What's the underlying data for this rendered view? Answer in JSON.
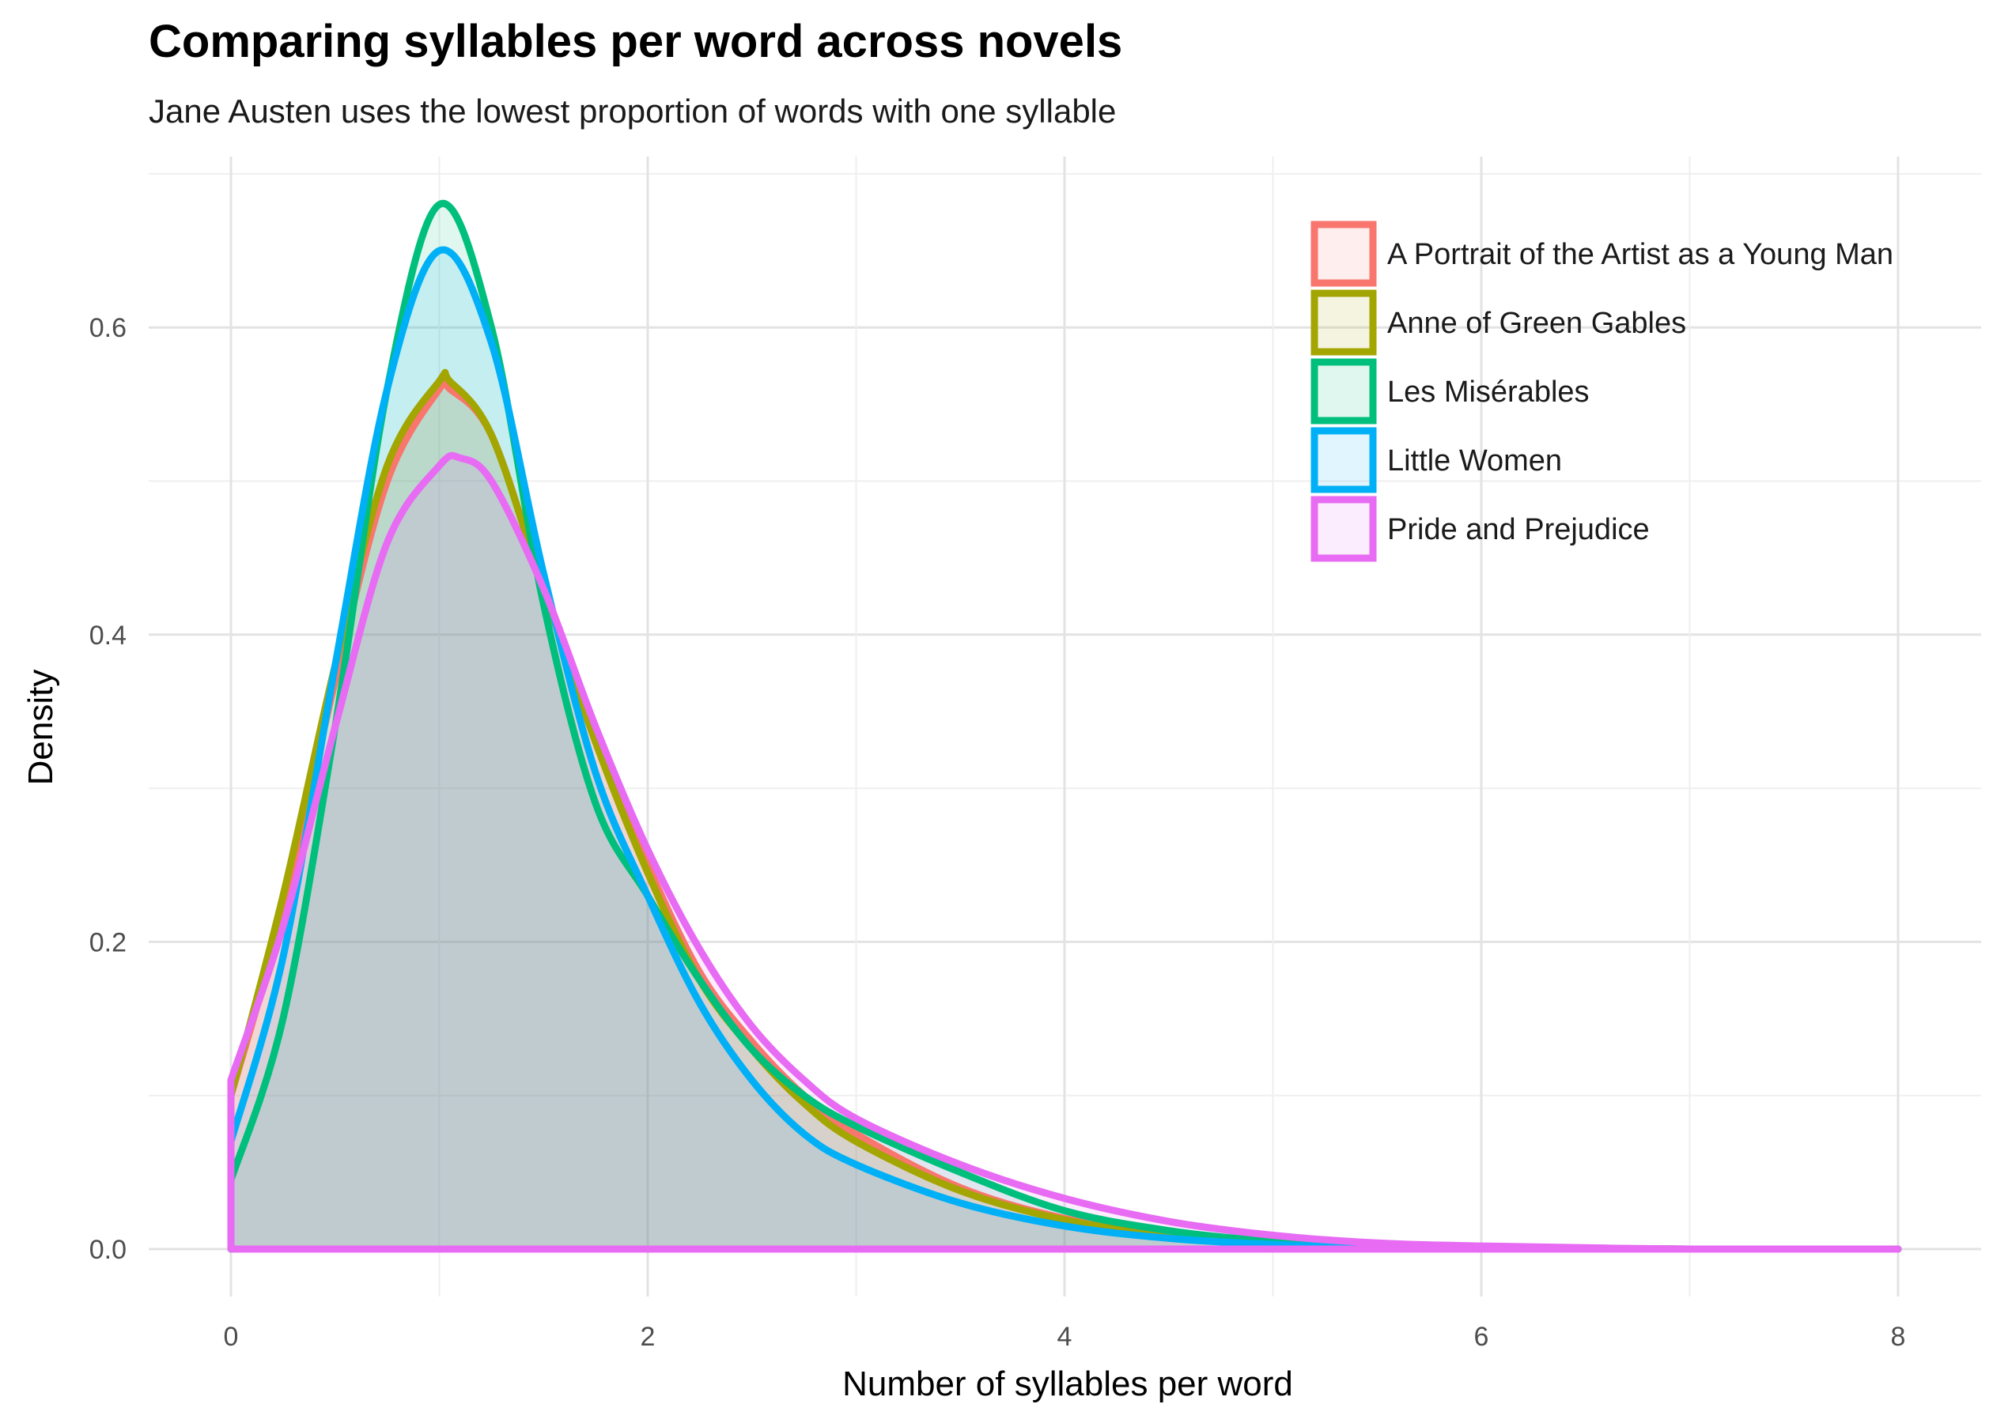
{
  "chart_data": {
    "type": "area",
    "title": "Comparing syllables per word across novels",
    "subtitle": "Jane Austen uses the lowest proportion of words with one syllable",
    "xlabel": "Number of syllables per word",
    "ylabel": "Density",
    "xlim": [
      0,
      8
    ],
    "ylim": [
      0,
      0.7
    ],
    "x_ticks": [
      0,
      2,
      4,
      6,
      8
    ],
    "y_ticks": [
      0.0,
      0.2,
      0.4,
      0.6
    ],
    "x_tick_labels": [
      "0",
      "2",
      "4",
      "6",
      "8"
    ],
    "y_tick_labels": [
      "0.0",
      "0.2",
      "0.4",
      "0.6"
    ],
    "grid": true,
    "legend_position": "top-right",
    "series": [
      {
        "name": "A Portrait of the Artist as a Young Man",
        "color": "#F8766D",
        "x": [
          0,
          0.25,
          0.5,
          0.75,
          1.0,
          1.05,
          1.25,
          1.5,
          1.75,
          2.0,
          2.25,
          2.5,
          2.75,
          3.0,
          3.5,
          4.0,
          4.5,
          5.0,
          5.5,
          6.0,
          7.0,
          8.0
        ],
        "y": [
          0.1,
          0.22,
          0.37,
          0.5,
          0.56,
          0.56,
          0.53,
          0.43,
          0.33,
          0.25,
          0.18,
          0.135,
          0.1,
          0.075,
          0.04,
          0.02,
          0.01,
          0.005,
          0.002,
          0.001,
          0.0,
          0.0
        ]
      },
      {
        "name": "Anne of Green Gables",
        "color": "#A3A500",
        "x": [
          0,
          0.25,
          0.5,
          0.75,
          1.0,
          1.05,
          1.25,
          1.5,
          1.75,
          2.0,
          2.25,
          2.5,
          2.75,
          3.0,
          3.5,
          4.0,
          4.5,
          5.0,
          5.5,
          6.0,
          7.0,
          8.0
        ],
        "y": [
          0.1,
          0.23,
          0.38,
          0.51,
          0.565,
          0.565,
          0.53,
          0.43,
          0.33,
          0.245,
          0.175,
          0.13,
          0.095,
          0.07,
          0.038,
          0.019,
          0.009,
          0.004,
          0.002,
          0.001,
          0.0,
          0.0
        ]
      },
      {
        "name": "Les Misérables",
        "color": "#00BF7D",
        "x": [
          0,
          0.25,
          0.5,
          0.75,
          1.0,
          1.25,
          1.5,
          1.75,
          2.0,
          2.25,
          2.5,
          2.75,
          3.0,
          3.5,
          4.0,
          4.5,
          5.0,
          5.5,
          6.0,
          7.0,
          8.0
        ],
        "y": [
          0.045,
          0.15,
          0.34,
          0.56,
          0.68,
          0.6,
          0.42,
          0.29,
          0.23,
          0.175,
          0.13,
          0.1,
          0.08,
          0.05,
          0.025,
          0.012,
          0.005,
          0.002,
          0.001,
          0.0,
          0.0
        ]
      },
      {
        "name": "Little Women",
        "color": "#00B0F6",
        "x": [
          0,
          0.25,
          0.5,
          0.75,
          1.0,
          1.25,
          1.5,
          1.75,
          2.0,
          2.25,
          2.5,
          2.75,
          3.0,
          3.5,
          4.0,
          4.5,
          5.0,
          5.5,
          6.0,
          7.0,
          8.0
        ],
        "y": [
          0.07,
          0.19,
          0.38,
          0.56,
          0.65,
          0.59,
          0.44,
          0.31,
          0.23,
          0.16,
          0.11,
          0.075,
          0.055,
          0.03,
          0.015,
          0.007,
          0.003,
          0.001,
          0.0,
          0.0,
          0.0
        ]
      },
      {
        "name": "Pride and Prejudice",
        "color": "#E76BF3",
        "x": [
          0,
          0.25,
          0.5,
          0.75,
          1.0,
          1.1,
          1.25,
          1.5,
          1.75,
          2.0,
          2.25,
          2.5,
          2.75,
          3.0,
          3.5,
          4.0,
          4.5,
          5.0,
          5.5,
          6.0,
          7.0,
          8.0
        ],
        "y": [
          0.11,
          0.21,
          0.34,
          0.46,
          0.51,
          0.515,
          0.5,
          0.43,
          0.34,
          0.26,
          0.195,
          0.145,
          0.11,
          0.085,
          0.055,
          0.033,
          0.018,
          0.009,
          0.004,
          0.002,
          0.0,
          0.0
        ]
      }
    ]
  }
}
